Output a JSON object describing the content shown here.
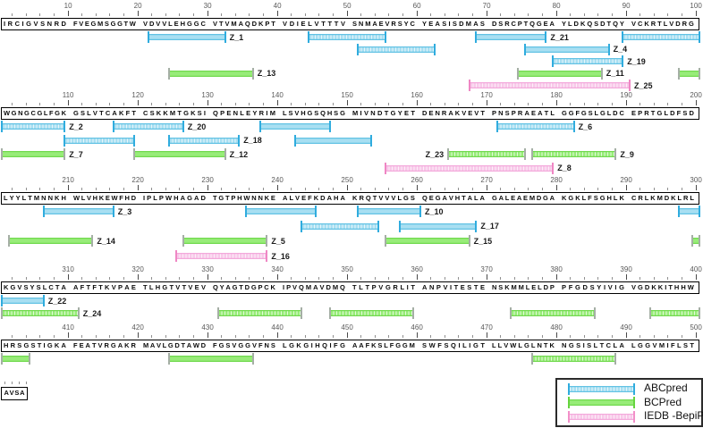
{
  "colors": {
    "blue": {
      "fill": "#A8DFF2",
      "edge": "#62C2E4",
      "cap": "#30ACDE",
      "legend_cap": "#30ACDE"
    },
    "green": {
      "fill": "#98EC79",
      "edge": "#72D94F",
      "cap": "#A5AFA5",
      "legend_cap": "#66D43F"
    },
    "pink": {
      "fill": "#F8C9E9",
      "edge": "#F3A9DB",
      "cap": "#EF87C4",
      "legend_cap": "#F28FC8"
    }
  },
  "rows": [
    {
      "start": 1,
      "ticks": [
        10,
        20,
        30,
        40,
        50,
        60,
        70,
        80,
        90,
        100
      ],
      "sequence": "IRCIGVSNRD FVEGMSGGTW VDVVLEHGGC VTVMAQDKPT VDIELVTTTV SNMAEVRSYC YEASISDMAS DSRCPTQGEA YLDKQSDTQY VCKRTLVDRG",
      "lines": [
        [
          {
            "s": 22,
            "e": 32,
            "color": "blue",
            "style": "solid",
            "label": "Z_1"
          },
          {
            "s": 45,
            "e": 55,
            "color": "blue",
            "style": "striped"
          },
          {
            "s": 69,
            "e": 78,
            "color": "blue",
            "style": "solid",
            "label": "Z_21"
          },
          {
            "s": 90,
            "e": 100,
            "color": "blue",
            "style": "striped"
          }
        ],
        [
          {
            "s": 52,
            "e": 62,
            "color": "blue",
            "style": "striped"
          },
          {
            "s": 76,
            "e": 87,
            "color": "blue",
            "style": "solid",
            "label": "Z_4"
          }
        ],
        [
          {
            "s": 80,
            "e": 89,
            "color": "blue",
            "style": "striped",
            "label": "Z_19"
          }
        ],
        [
          {
            "s": 25,
            "e": 36,
            "color": "green",
            "style": "solid",
            "label": "Z_13"
          },
          {
            "s": 75,
            "e": 86,
            "color": "green",
            "style": "solid",
            "label": "Z_11"
          },
          {
            "s": 98,
            "e": 100,
            "color": "green",
            "style": "solid"
          }
        ],
        [
          {
            "s": 68,
            "e": 90,
            "color": "pink",
            "style": "striped",
            "label": "Z_25"
          }
        ]
      ]
    },
    {
      "start": 101,
      "ticks": [
        110,
        120,
        130,
        140,
        150,
        160,
        170,
        180,
        190,
        200
      ],
      "sequence": "WGNGCGLFGK GSLVTCAKFT CSKKMTGKSI QPENLEYRIM LSVHGSQHSG MIVNDTGYET DENRAKVEVT PNSPRAEATL GGFGSLGLDC EPRTGLDFSD",
      "lines": [
        [
          {
            "s": 101,
            "e": 109,
            "color": "blue",
            "style": "striped",
            "label": "Z_2"
          },
          {
            "s": 117,
            "e": 126,
            "color": "blue",
            "style": "striped",
            "label": "Z_20"
          },
          {
            "s": 138,
            "e": 147,
            "color": "blue",
            "style": "solid"
          },
          {
            "s": 172,
            "e": 182,
            "color": "blue",
            "style": "striped",
            "label": "Z_6"
          }
        ],
        [
          {
            "s": 110,
            "e": 119,
            "color": "blue",
            "style": "striped"
          },
          {
            "s": 125,
            "e": 134,
            "color": "blue",
            "style": "striped",
            "label": "Z_18"
          },
          {
            "s": 143,
            "e": 153,
            "color": "blue",
            "style": "solid"
          }
        ],
        [
          {
            "s": 101,
            "e": 109,
            "color": "green",
            "style": "solid",
            "label": "Z_7"
          },
          {
            "s": 120,
            "e": 132,
            "color": "green",
            "style": "solid",
            "label": "Z_12"
          },
          {
            "s": 165,
            "e": 175,
            "color": "green",
            "style": "striped",
            "label": "Z_23",
            "label_pos": "before"
          },
          {
            "s": 177,
            "e": 188,
            "color": "green",
            "style": "striped",
            "label": "Z_9"
          }
        ],
        [
          {
            "s": 156,
            "e": 179,
            "color": "pink",
            "style": "striped",
            "label": "Z_8"
          }
        ]
      ]
    },
    {
      "start": 201,
      "ticks": [
        210,
        220,
        230,
        240,
        250,
        260,
        270,
        280,
        290,
        300
      ],
      "sequence": "LYYLTMNNKH WLVHKEWFHD IPLPWHAGAD TGTPHWNNKE ALVEFKDAHA KRQTVVVLGS QEGAVHTALA GALEAEMDGA KGKLFSGHLK CRLKMDKLRL",
      "lines": [
        [
          {
            "s": 207,
            "e": 216,
            "color": "blue",
            "style": "solid",
            "label": "Z_3"
          },
          {
            "s": 236,
            "e": 245,
            "color": "blue",
            "style": "solid"
          },
          {
            "s": 252,
            "e": 260,
            "color": "blue",
            "style": "solid",
            "label": "Z_10"
          },
          {
            "s": 298,
            "e": 300,
            "color": "blue",
            "style": "solid"
          }
        ],
        [
          {
            "s": 244,
            "e": 254,
            "color": "blue",
            "style": "striped"
          },
          {
            "s": 258,
            "e": 268,
            "color": "blue",
            "style": "solid",
            "label": "Z_17"
          }
        ],
        [
          {
            "s": 202,
            "e": 213,
            "color": "green",
            "style": "solid",
            "label": "Z_14"
          },
          {
            "s": 227,
            "e": 238,
            "color": "green",
            "style": "solid",
            "label": "Z_5"
          },
          {
            "s": 256,
            "e": 267,
            "color": "green",
            "style": "solid",
            "label": "Z_15"
          },
          {
            "s": 300,
            "e": 300,
            "color": "green",
            "style": "solid"
          }
        ],
        [
          {
            "s": 226,
            "e": 238,
            "color": "pink",
            "style": "striped",
            "label": "Z_16"
          }
        ]
      ]
    },
    {
      "start": 301,
      "ticks": [
        310,
        320,
        330,
        340,
        350,
        360,
        370,
        380,
        390,
        400
      ],
      "sequence": "KGVSYSLCTA AFTFTKVPAE TLHGTVTVEV QYAGTDGPCK IPVQMAVDMQ TLTPVGRLIT ANPVITESTE NSKMMLELDP PFGDSYIVIG VGDKKITHHW",
      "lines": [
        [
          {
            "s": 301,
            "e": 306,
            "color": "blue",
            "style": "solid",
            "label": "Z_22"
          }
        ],
        [
          {
            "s": 301,
            "e": 311,
            "color": "green",
            "style": "striped",
            "label": "Z_24"
          },
          {
            "s": 332,
            "e": 343,
            "color": "green",
            "style": "striped"
          },
          {
            "s": 348,
            "e": 359,
            "color": "green",
            "style": "striped"
          },
          {
            "s": 374,
            "e": 385,
            "color": "green",
            "style": "striped"
          },
          {
            "s": 394,
            "e": 400,
            "color": "green",
            "style": "striped"
          }
        ]
      ]
    },
    {
      "start": 401,
      "ticks": [
        410,
        420,
        430,
        440,
        450,
        460,
        470,
        480,
        490,
        500
      ],
      "sequence": "HRSGSTIGKA FEATVRGAKR MAVLGDTAWD FGSVGGVFNS LGKGIHQIFG AAFKSLFGGM SWFSQILIGT LLVWLGLNTK NGSISLTCLA LGGVMIFLST",
      "lines": [
        [
          {
            "s": 401,
            "e": 404,
            "color": "green",
            "style": "solid"
          },
          {
            "s": 425,
            "e": 436,
            "color": "green",
            "style": "solid"
          },
          {
            "s": 477,
            "e": 488,
            "color": "green",
            "style": "striped"
          }
        ]
      ]
    }
  ],
  "tail": {
    "sequence": "AVSA"
  },
  "legend": {
    "entries": [
      {
        "label": "ABCpred",
        "color": "blue",
        "style": "striped"
      },
      {
        "label": "BCPred",
        "color": "green",
        "style": "solid"
      },
      {
        "label": "IEDB -BepiPred",
        "color": "pink",
        "style": "striped"
      }
    ]
  }
}
